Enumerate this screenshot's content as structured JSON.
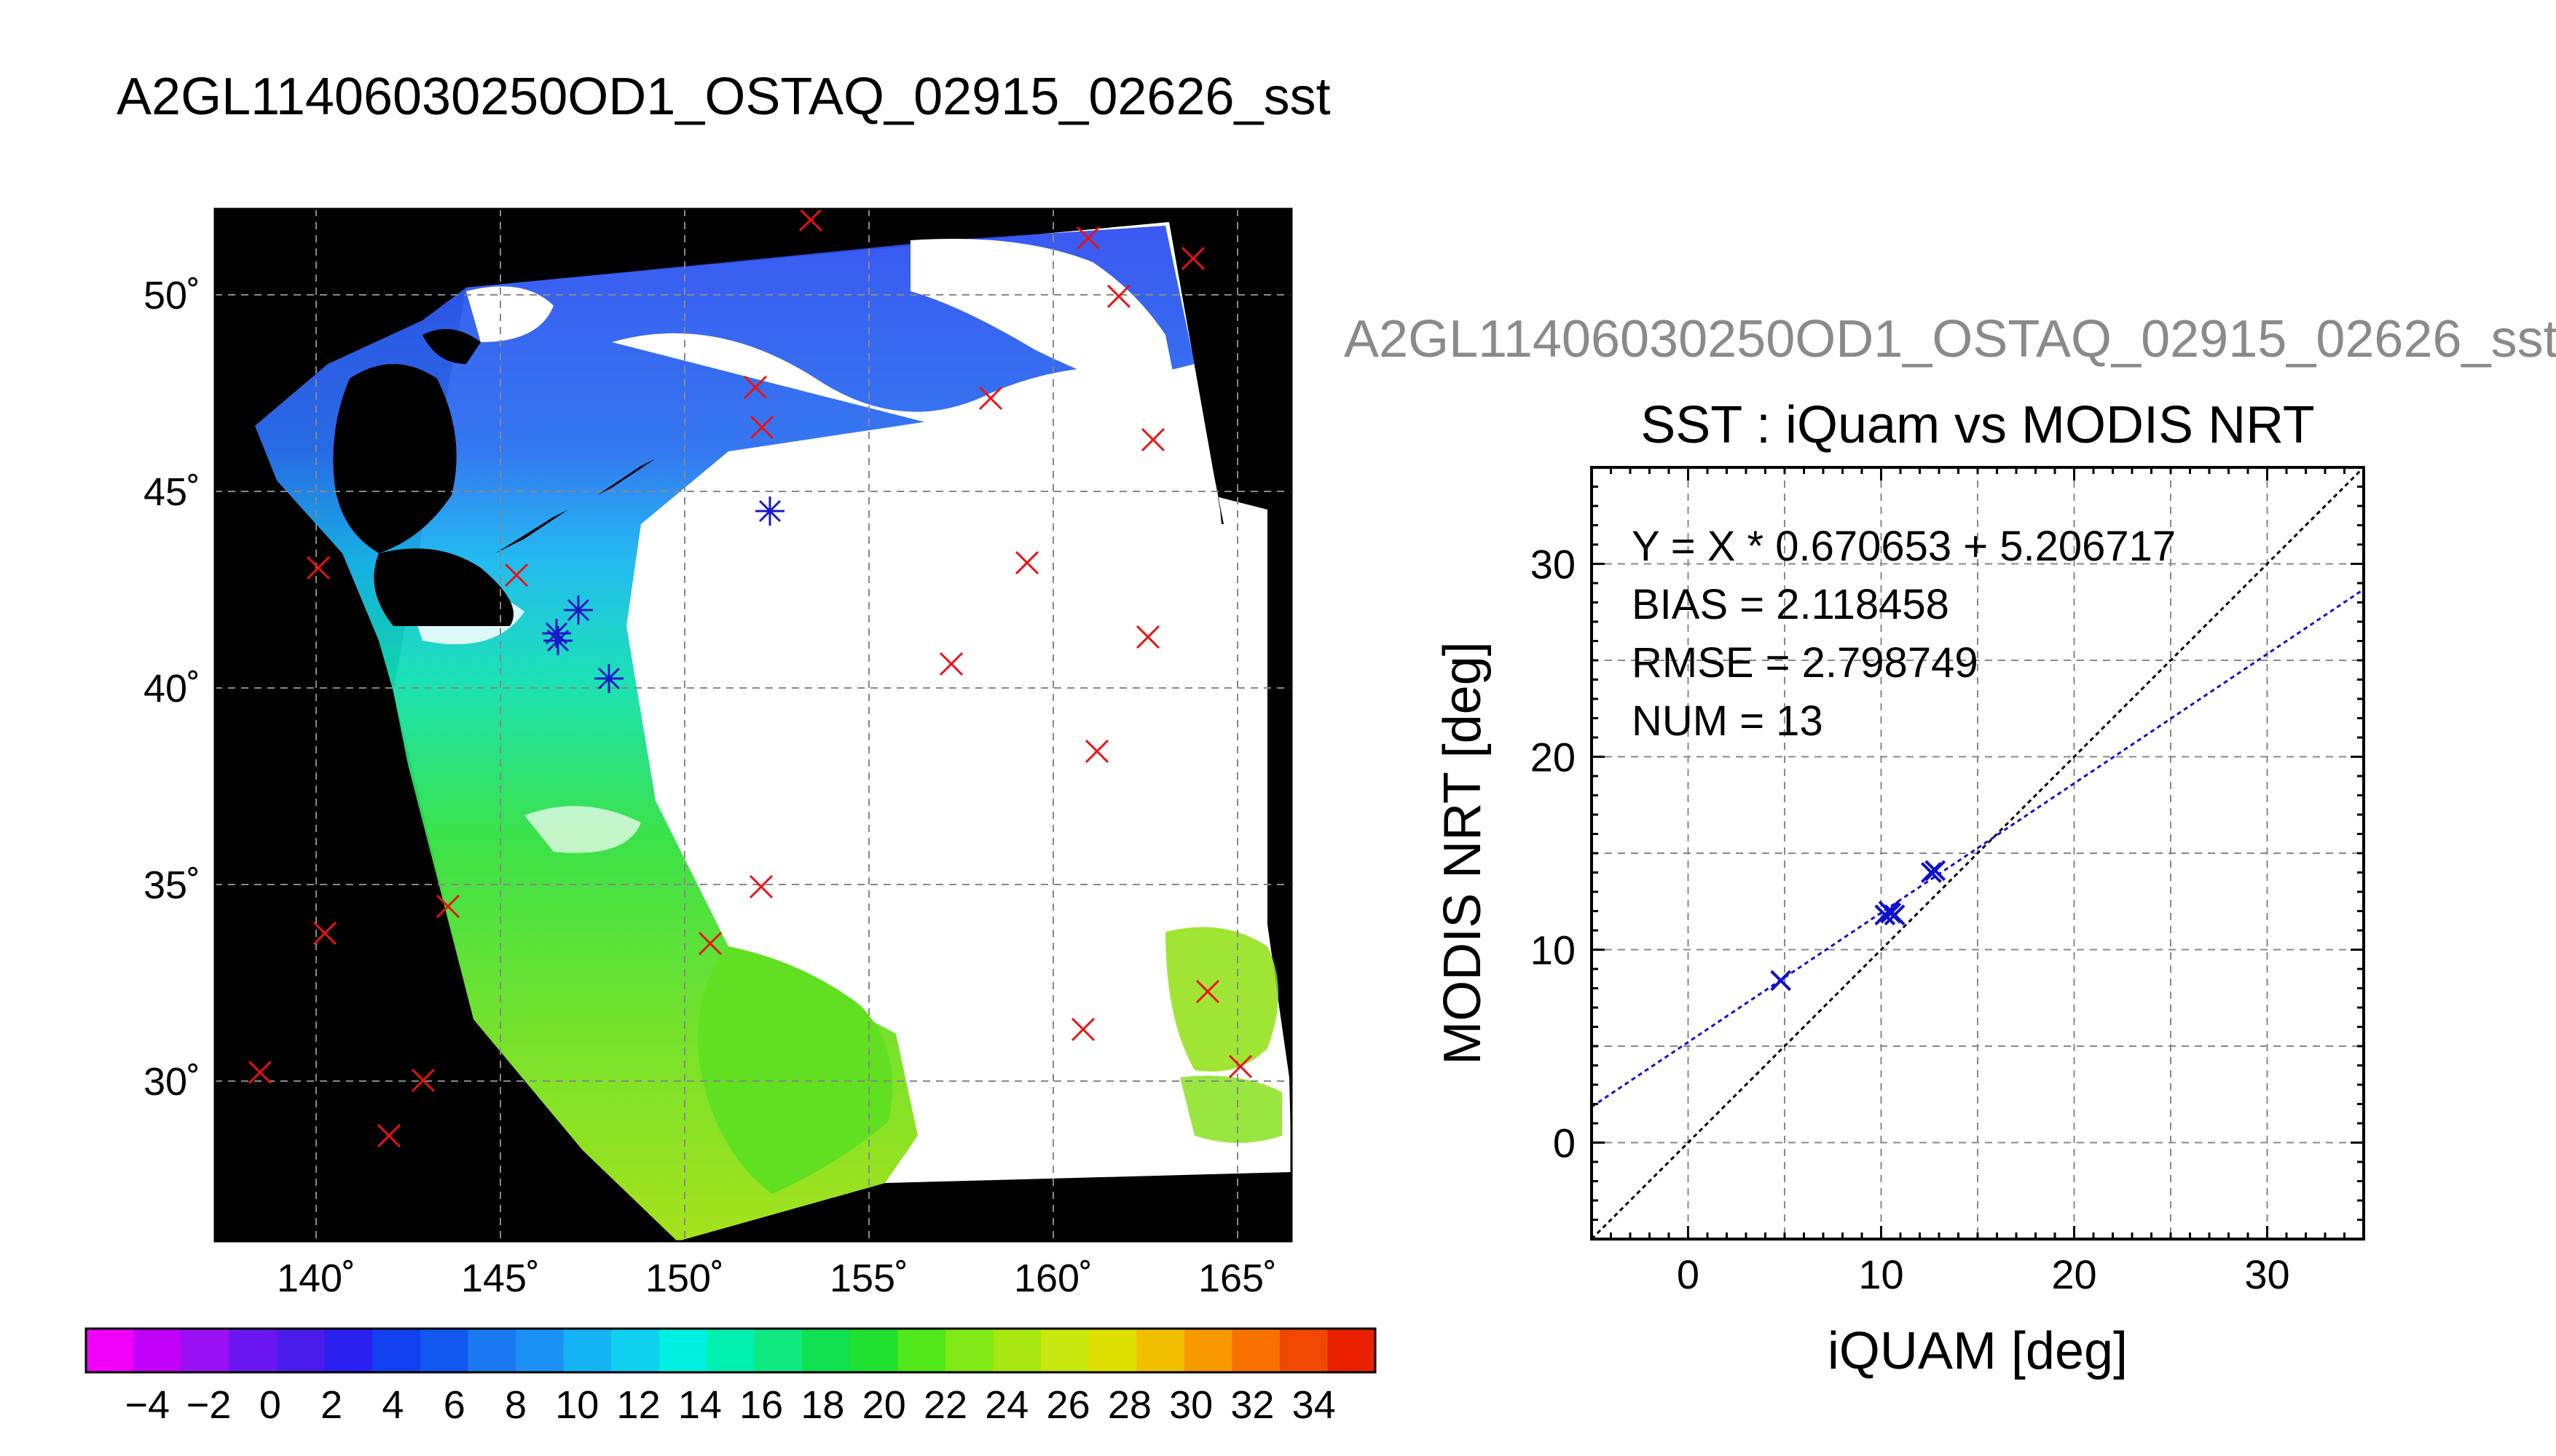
{
  "main_title": "A2GL11406030250OD1_OSTAQ_02915_02626_sst",
  "scatter_header": "A2GL11406030250OD1_OSTAQ_02915_02626_sst",
  "map": {
    "lon_ticks": [
      "140˚",
      "145˚",
      "150˚",
      "155˚",
      "160˚",
      "165˚"
    ],
    "lat_ticks": [
      "50˚",
      "45˚",
      "40˚",
      "35˚",
      "30˚"
    ]
  },
  "colorbar": {
    "labels": [
      "−4",
      "−2",
      "0",
      "2",
      "4",
      "6",
      "8",
      "10",
      "12",
      "14",
      "16",
      "18",
      "20",
      "22",
      "24",
      "26",
      "28",
      "30",
      "32",
      "34"
    ],
    "colors": [
      "#f000f8",
      "#c000f8",
      "#9a10f4",
      "#6a16f0",
      "#4a1cec",
      "#2a20f0",
      "#1040f0",
      "#1058f0",
      "#1a78f0",
      "#1a90f4",
      "#14b4f4",
      "#10d0f0",
      "#00f0e0",
      "#00f0b0",
      "#10e880",
      "#10e050",
      "#20e030",
      "#50e818",
      "#80e814",
      "#a8e810",
      "#c8e810",
      "#e0e000",
      "#f0c000",
      "#f89800",
      "#f87000",
      "#f04800",
      "#e82000"
    ]
  },
  "stats": {
    "line1": "Y = X * 0.670653 + 5.206717",
    "line2": "BIAS = 2.118458",
    "line3": "RMSE = 2.798749",
    "line4": "NUM = 13"
  },
  "chart_data": {
    "type": "scatter",
    "title": "SST : iQuam vs MODIS NRT",
    "xlabel": "iQUAM [deg]",
    "ylabel": "MODIS NRT [deg]",
    "xlim": [
      -5,
      35
    ],
    "ylim": [
      -5,
      35
    ],
    "xticks": [
      "0",
      "10",
      "20",
      "30"
    ],
    "yticks": [
      "0",
      "10",
      "20",
      "30"
    ],
    "grid": true,
    "points": [
      {
        "x": 4.8,
        "y": 8.4
      },
      {
        "x": 10.2,
        "y": 11.8
      },
      {
        "x": 10.4,
        "y": 12.0
      },
      {
        "x": 10.5,
        "y": 11.9
      },
      {
        "x": 10.7,
        "y": 11.8
      },
      {
        "x": 12.6,
        "y": 14.0
      },
      {
        "x": 12.8,
        "y": 14.1
      }
    ],
    "regression": {
      "slope": 0.670653,
      "intercept": 5.206717,
      "color": "#1010d0"
    },
    "identity_line": {
      "slope": 1,
      "intercept": 0,
      "color": "#000000"
    },
    "point_color": "#1010d0"
  }
}
